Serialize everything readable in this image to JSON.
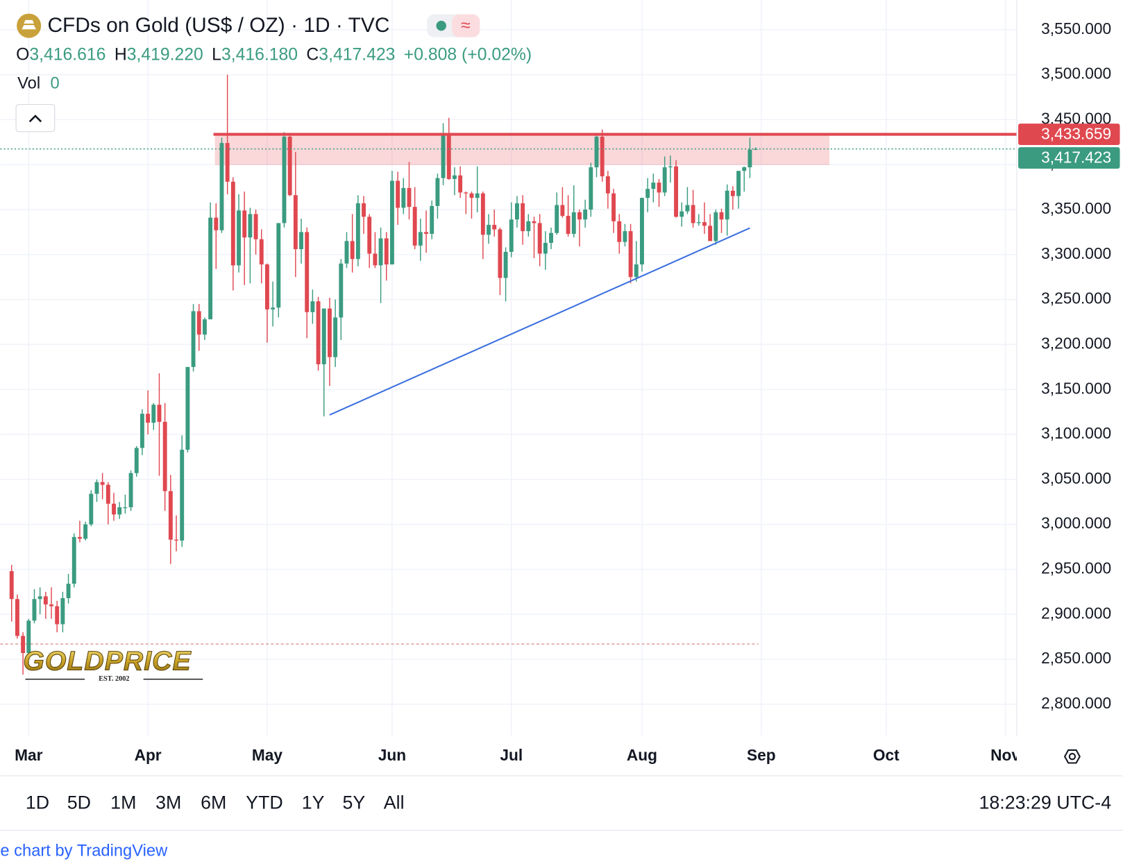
{
  "header": {
    "title": "CFDs on Gold (US$ / OZ) · 1D · TVC",
    "ohlc": [
      {
        "key": "O",
        "value": "3,416.616"
      },
      {
        "key": "H",
        "value": "3,419.220"
      },
      {
        "key": "L",
        "value": "3,416.180"
      },
      {
        "key": "C",
        "value": "3,417.423"
      }
    ],
    "change": "+0.808 (+0.02%)",
    "volume": {
      "key": "Vol",
      "value": "0"
    }
  },
  "logo": {
    "name": "GOLDPRICE",
    "tagline": "EST. 2002"
  },
  "chart_data": {
    "type": "candlestick",
    "up_color": "#3a9b80",
    "down_color": "#e04850",
    "ohlc": [
      [
        2948,
        2955,
        2892,
        2917
      ],
      [
        2917,
        2922,
        2873,
        2876
      ],
      [
        2876,
        2880,
        2833,
        2857
      ],
      [
        2857,
        2895,
        2855,
        2893
      ],
      [
        2893,
        2928,
        2890,
        2917
      ],
      [
        2917,
        2930,
        2900,
        2920
      ],
      [
        2920,
        2925,
        2895,
        2911
      ],
      [
        2911,
        2930,
        2895,
        2909
      ],
      [
        2909,
        2915,
        2880,
        2889
      ],
      [
        2889,
        2925,
        2880,
        2918
      ],
      [
        2918,
        2945,
        2912,
        2934
      ],
      [
        2934,
        2990,
        2930,
        2986
      ],
      [
        2986,
        3004,
        2980,
        2984
      ],
      [
        2984,
        3003,
        2982,
        3000
      ],
      [
        3000,
        3038,
        2998,
        3034
      ],
      [
        3034,
        3050,
        3025,
        3047
      ],
      [
        3047,
        3057,
        3028,
        3044
      ],
      [
        3044,
        3047,
        3000,
        3023
      ],
      [
        3023,
        3035,
        3004,
        3011
      ],
      [
        3011,
        3025,
        3006,
        3019
      ],
      [
        3019,
        3033,
        3012,
        3019
      ],
      [
        3019,
        3060,
        3015,
        3057
      ],
      [
        3057,
        3087,
        3053,
        3085
      ],
      [
        3085,
        3128,
        3077,
        3123
      ],
      [
        3123,
        3149,
        3100,
        3113
      ],
      [
        3113,
        3135,
        3105,
        3133
      ],
      [
        3133,
        3168,
        3054,
        3114
      ],
      [
        3114,
        3135,
        3015,
        3037
      ],
      [
        3037,
        3055,
        2956,
        2983
      ],
      [
        2983,
        3010,
        2970,
        2982
      ],
      [
        2982,
        3099,
        2975,
        3083
      ],
      [
        3083,
        3175,
        3080,
        3175
      ],
      [
        3175,
        3245,
        3170,
        3237
      ],
      [
        3237,
        3245,
        3193,
        3211
      ],
      [
        3211,
        3230,
        3205,
        3228
      ],
      [
        3228,
        3358,
        3228,
        3341
      ],
      [
        3341,
        3357,
        3284,
        3327
      ],
      [
        3327,
        3430,
        3324,
        3424
      ],
      [
        3424,
        3500,
        3367,
        3381
      ],
      [
        3381,
        3386,
        3260,
        3288
      ],
      [
        3288,
        3367,
        3280,
        3349
      ],
      [
        3349,
        3370,
        3266,
        3319
      ],
      [
        3319,
        3352,
        3268,
        3345
      ],
      [
        3345,
        3350,
        3300,
        3317
      ],
      [
        3317,
        3328,
        3268,
        3289
      ],
      [
        3289,
        3290,
        3202,
        3239
      ],
      [
        3239,
        3270,
        3220,
        3241
      ],
      [
        3241,
        3335,
        3230,
        3335
      ],
      [
        3335,
        3436,
        3330,
        3431
      ],
      [
        3431,
        3435,
        3365,
        3366
      ],
      [
        3366,
        3414,
        3275,
        3306
      ],
      [
        3306,
        3340,
        3290,
        3325
      ],
      [
        3325,
        3330,
        3207,
        3236
      ],
      [
        3236,
        3261,
        3223,
        3248
      ],
      [
        3248,
        3253,
        3171,
        3178
      ],
      [
        3178,
        3240,
        3120,
        3240
      ],
      [
        3240,
        3252,
        3154,
        3186
      ],
      [
        3186,
        3250,
        3175,
        3230
      ],
      [
        3230,
        3295,
        3205,
        3290
      ],
      [
        3290,
        3325,
        3285,
        3315
      ],
      [
        3315,
        3345,
        3280,
        3295
      ],
      [
        3295,
        3366,
        3287,
        3357
      ],
      [
        3357,
        3365,
        3323,
        3342
      ],
      [
        3342,
        3345,
        3285,
        3301
      ],
      [
        3301,
        3325,
        3285,
        3288
      ],
      [
        3288,
        3330,
        3246,
        3318
      ],
      [
        3318,
        3325,
        3271,
        3289
      ],
      [
        3289,
        3393,
        3289,
        3382
      ],
      [
        3382,
        3392,
        3333,
        3352
      ],
      [
        3352,
        3385,
        3345,
        3374
      ],
      [
        3374,
        3403,
        3339,
        3353
      ],
      [
        3353,
        3375,
        3306,
        3310
      ],
      [
        3310,
        3340,
        3293,
        3325
      ],
      [
        3325,
        3349,
        3302,
        3323
      ],
      [
        3323,
        3360,
        3317,
        3354
      ],
      [
        3354,
        3390,
        3340,
        3385
      ],
      [
        3385,
        3446,
        3377,
        3433
      ],
      [
        3433,
        3452,
        3383,
        3384
      ],
      [
        3384,
        3397,
        3366,
        3388
      ],
      [
        3388,
        3398,
        3363,
        3369
      ],
      [
        3369,
        3370,
        3345,
        3368
      ],
      [
        3368,
        3370,
        3340,
        3363
      ],
      [
        3363,
        3398,
        3347,
        3368
      ],
      [
        3368,
        3370,
        3295,
        3322
      ],
      [
        3322,
        3345,
        3312,
        3333
      ],
      [
        3333,
        3350,
        3320,
        3328
      ],
      [
        3328,
        3330,
        3255,
        3274
      ],
      [
        3274,
        3308,
        3248,
        3303
      ],
      [
        3303,
        3358,
        3297,
        3339
      ],
      [
        3339,
        3365,
        3330,
        3357
      ],
      [
        3357,
        3366,
        3311,
        3326
      ],
      [
        3326,
        3345,
        3320,
        3337
      ],
      [
        3337,
        3342,
        3296,
        3335
      ],
      [
        3335,
        3345,
        3287,
        3301
      ],
      [
        3301,
        3326,
        3283,
        3313
      ],
      [
        3313,
        3330,
        3306,
        3324
      ],
      [
        3324,
        3369,
        3322,
        3355
      ],
      [
        3355,
        3375,
        3341,
        3343
      ],
      [
        3343,
        3366,
        3320,
        3323
      ],
      [
        3323,
        3377,
        3319,
        3347
      ],
      [
        3347,
        3350,
        3309,
        3339
      ],
      [
        3339,
        3361,
        3330,
        3350
      ],
      [
        3350,
        3402,
        3342,
        3397
      ],
      [
        3397,
        3434,
        3386,
        3431
      ],
      [
        3431,
        3439,
        3381,
        3387
      ],
      [
        3387,
        3393,
        3351,
        3368
      ],
      [
        3368,
        3373,
        3324,
        3337
      ],
      [
        3337,
        3345,
        3301,
        3314
      ],
      [
        3314,
        3334,
        3309,
        3326
      ],
      [
        3326,
        3334,
        3268,
        3275
      ],
      [
        3275,
        3315,
        3270,
        3289
      ],
      [
        3289,
        3363,
        3281,
        3363
      ],
      [
        3363,
        3385,
        3347,
        3373
      ],
      [
        3373,
        3390,
        3358,
        3380
      ],
      [
        3380,
        3384,
        3353,
        3369
      ],
      [
        3369,
        3409,
        3365,
        3397
      ],
      [
        3397,
        3410,
        3380,
        3398
      ],
      [
        3398,
        3405,
        3341,
        3342
      ],
      [
        3342,
        3358,
        3331,
        3348
      ],
      [
        3348,
        3375,
        3345,
        3355
      ],
      [
        3355,
        3372,
        3330,
        3335
      ],
      [
        3335,
        3345,
        3332,
        3336
      ],
      [
        3336,
        3358,
        3323,
        3332
      ],
      [
        3332,
        3345,
        3315,
        3315
      ],
      [
        3315,
        3350,
        3311,
        3347
      ],
      [
        3347,
        3351,
        3324,
        3339
      ],
      [
        3339,
        3378,
        3321,
        3371
      ],
      [
        3371,
        3376,
        3350,
        3365
      ],
      [
        3365,
        3393,
        3351,
        3393
      ],
      [
        3393,
        3398,
        3370,
        3397
      ],
      [
        3397,
        3430,
        3385,
        3416.615
      ],
      [
        3416.616,
        3419.22,
        3416.18,
        3417.423
      ]
    ],
    "xlim": [
      -2,
      177
    ],
    "xticks": [
      {
        "value": 3,
        "label": "Mar"
      },
      {
        "value": 24,
        "label": "Apr"
      },
      {
        "value": 45,
        "label": "May"
      },
      {
        "value": 67,
        "label": "Jun"
      },
      {
        "value": 88,
        "label": "Jul"
      },
      {
        "value": 111,
        "label": "Aug"
      },
      {
        "value": 132,
        "label": "Sep"
      },
      {
        "value": 154,
        "label": "Oct"
      },
      {
        "value": 175,
        "label": "Nov"
      }
    ],
    "ylim": [
      2765,
      3583
    ],
    "yticks": [
      {
        "value": 2800,
        "label": "2,800.000"
      },
      {
        "value": 2850,
        "label": "2,850.000"
      },
      {
        "value": 2900,
        "label": "2,900.000"
      },
      {
        "value": 2950,
        "label": "2,950.000"
      },
      {
        "value": 3000,
        "label": "3,000.000"
      },
      {
        "value": 3050,
        "label": "3,050.000"
      },
      {
        "value": 3100,
        "label": "3,100.000"
      },
      {
        "value": 3150,
        "label": "3,150.000"
      },
      {
        "value": 3200,
        "label": "3,200.000"
      },
      {
        "value": 3250,
        "label": "3,250.000"
      },
      {
        "value": 3300,
        "label": "3,300.000"
      },
      {
        "value": 3350,
        "label": "3,350.000"
      },
      {
        "value": 3400,
        "label": "3,400.000"
      },
      {
        "value": 3450,
        "label": "3,450.000"
      },
      {
        "value": 3500,
        "label": "3,500.000"
      },
      {
        "value": 3550,
        "label": "3,550.000"
      }
    ],
    "grid": true,
    "resistance": {
      "value": 3433.659,
      "label": "3,433.659",
      "color": "#e04850"
    },
    "last_price": {
      "value": 3417.423,
      "label": "3,417.423",
      "color": "#3a9b80"
    },
    "zone": {
      "x": [
        35.8,
        144
      ],
      "y": [
        3399.5,
        3433.659
      ],
      "color": "rgba(230,72,80,0.22)"
    },
    "trendline": {
      "x": [
        56,
        130
      ],
      "y": [
        3121.7,
        3329.5
      ],
      "color": "#3b6fe0"
    },
    "dashed_level": {
      "value": 2867,
      "color": "#d98a8a"
    }
  },
  "toolbar": {
    "ranges": [
      "1D",
      "5D",
      "1M",
      "3M",
      "6M",
      "YTD",
      "1Y",
      "5Y",
      "All"
    ],
    "time": "18:23:29 UTC-4"
  },
  "footer": {
    "credit": "e chart by TradingView"
  }
}
